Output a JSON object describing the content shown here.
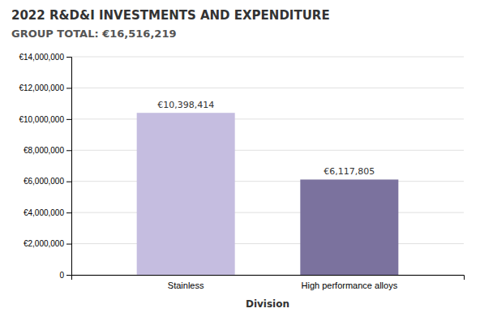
{
  "chart_data": {
    "type": "bar",
    "title": "2022 R&D&I INVESTMENTS AND EXPENDITURE",
    "subtitle": "GROUP TOTAL: €16,516,219",
    "x_label": "Division",
    "categories": [
      "Stainless",
      "High performance alloys"
    ],
    "values": [
      10398414,
      6117805
    ],
    "value_labels": [
      "€10,398,414",
      "€6,117,805"
    ],
    "data_labels": true,
    "colors": [
      "#c5bde0",
      "#7b729e"
    ],
    "ylim": [
      0,
      14000000
    ],
    "yticks": [
      0,
      {
        "value": 2000000,
        "label": "€2,000,000"
      },
      {
        "value": 4000000,
        "label": "€4,000,000"
      },
      {
        "value": 6000000,
        "label": "€6,000,000"
      },
      {
        "value": 8000000,
        "label": "€8,000,000"
      },
      {
        "value": 10000000,
        "label": "€10,000,000"
      },
      {
        "value": 12000000,
        "label": "€12,000,000"
      },
      {
        "value": 14000000,
        "label": "€14,000,000"
      }
    ],
    "grid": true
  }
}
